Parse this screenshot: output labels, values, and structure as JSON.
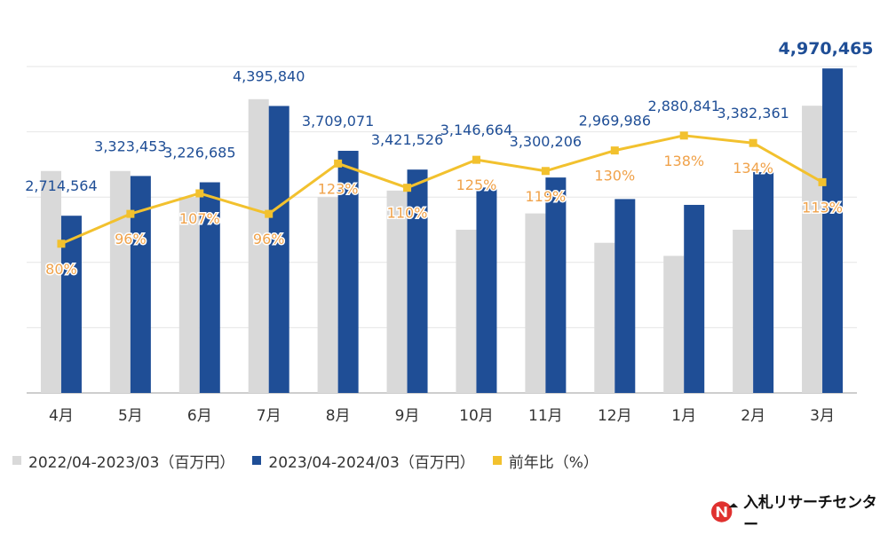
{
  "chart_data": {
    "type": "bar",
    "categories": [
      "4月",
      "5月",
      "6月",
      "7月",
      "8月",
      "9月",
      "10月",
      "11月",
      "12月",
      "1月",
      "2月",
      "3月"
    ],
    "series": [
      {
        "name": "2022/04-2023/03（百万円）",
        "color": "#d9d9d9",
        "values": [
          3400000,
          3400000,
          3000000,
          4500000,
          3000000,
          3100000,
          2500000,
          2750000,
          2300000,
          2100000,
          2500000,
          4400000
        ]
      },
      {
        "name": "2023/04-2024/03（百万円）",
        "color": "#1f4e96",
        "values": [
          2714564,
          3323453,
          3226685,
          4395840,
          3709071,
          3421526,
          3146664,
          3300206,
          2969986,
          2880841,
          3382361,
          4970465
        ],
        "labels": [
          "2,714,564",
          "3,323,453",
          "3,226,685",
          "4,395,840",
          "3,709,071",
          "3,421,526",
          "3,146,664",
          "3,300,206",
          "2,969,986",
          "2,880,841",
          "3,382,361",
          "4,970,465"
        ]
      }
    ],
    "line_series": {
      "name": "前年比（%）",
      "color": "#f2c12e",
      "label_color": "#f0a24a",
      "values": [
        80,
        96,
        107,
        96,
        123,
        110,
        125,
        119,
        130,
        138,
        134,
        113
      ],
      "labels": [
        "80%",
        "96%",
        "107%",
        "96%",
        "123%",
        "110%",
        "125%",
        "119%",
        "130%",
        "138%",
        "134%",
        "113%"
      ]
    },
    "ylim": [
      0,
      5000000
    ],
    "y2lim": [
      0,
      175
    ],
    "grid": true,
    "legend_position": "bottom-left"
  },
  "logo": {
    "text": "入札リサーチセンター",
    "icon": "nr-logo-icon"
  }
}
